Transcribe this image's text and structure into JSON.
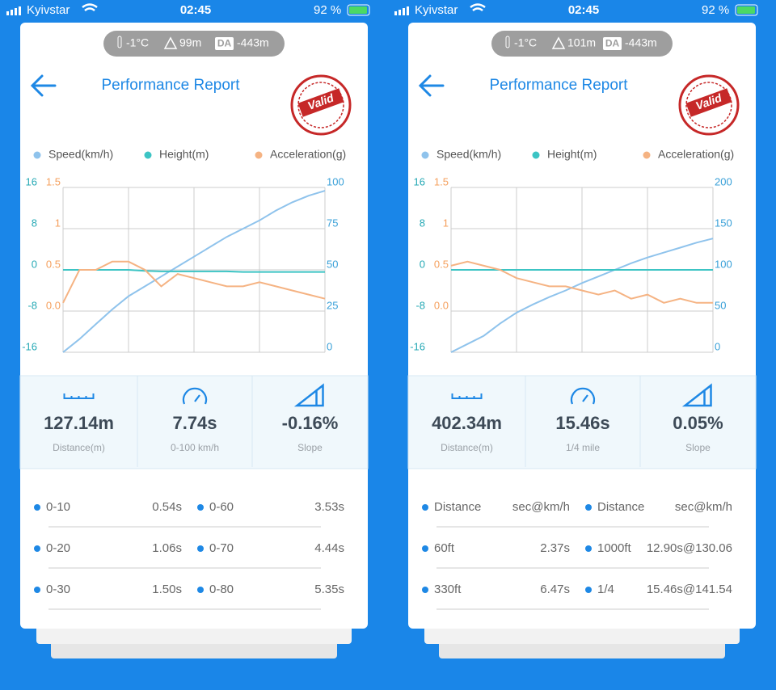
{
  "screens": [
    {
      "status": {
        "carrier": "Kyivstar",
        "time": "02:45",
        "battery": "92 %"
      },
      "conditions": {
        "temperature": "-1°C",
        "altitude": "99m",
        "da_badge": "DA",
        "density_altitude": "-443m"
      },
      "header": {
        "title": "Performance Report",
        "stamp": "Valid"
      },
      "chart": {
        "type": "line",
        "ylim": [
          -16,
          16
        ],
        "yticks": [
          16,
          8,
          0,
          -8,
          -16
        ],
        "acc_lim": [
          -0.5,
          1.5
        ],
        "acc_ticks": [
          1.5,
          1,
          0.5,
          {
            "value": 0,
            "label": "0.0"
          }
        ],
        "y2lim": [
          0,
          100
        ],
        "y2ticks": [
          100,
          75,
          50,
          25,
          0
        ],
        "grid": true,
        "series": [
          {
            "name": "Speed(km/h)",
            "color": "#8fc3ec",
            "axis": "y2",
            "values": [
              0,
              8,
              17,
              26,
              34,
              40,
              46,
              52,
              58,
              64,
              70,
              75,
              80,
              86,
              91,
              95,
              98
            ]
          },
          {
            "name": "Height(m)",
            "color": "#3cc4c4",
            "axis": "y",
            "values": [
              0,
              0,
              0,
              0,
              0,
              -0.2,
              -0.3,
              -0.3,
              -0.3,
              -0.3,
              -0.3,
              -0.4,
              -0.4,
              -0.4,
              -0.4,
              -0.4,
              -0.4
            ]
          },
          {
            "name": "Acceleration(g)",
            "color": "#f5b383",
            "axis": "acc",
            "values": [
              0.1,
              0.5,
              0.5,
              0.6,
              0.6,
              0.5,
              0.3,
              0.45,
              0.4,
              0.35,
              0.3,
              0.3,
              0.35,
              0.3,
              0.25,
              0.2,
              0.15
            ]
          }
        ]
      },
      "stats": [
        {
          "value": "127.14m",
          "label": "Distance(m)"
        },
        {
          "value": "7.74s",
          "label": "0-100 km/h"
        },
        {
          "value": "-0.16%",
          "label": "Slope"
        }
      ],
      "splits": [
        [
          "0-10",
          "0.54s",
          "0-60",
          "3.53s"
        ],
        [
          "0-20",
          "1.06s",
          "0-70",
          "4.44s"
        ],
        [
          "0-30",
          "1.50s",
          "0-80",
          "5.35s"
        ]
      ]
    },
    {
      "status": {
        "carrier": "Kyivstar",
        "time": "02:45",
        "battery": "92 %"
      },
      "conditions": {
        "temperature": "-1°C",
        "altitude": "101m",
        "da_badge": "DA",
        "density_altitude": "-443m"
      },
      "header": {
        "title": "Performance Report",
        "stamp": "Valid"
      },
      "chart": {
        "type": "line",
        "ylim": [
          -16,
          16
        ],
        "yticks": [
          16,
          8,
          0,
          -8,
          -16
        ],
        "acc_lim": [
          -0.5,
          1.5
        ],
        "acc_ticks": [
          1.5,
          1,
          0.5,
          {
            "value": 0,
            "label": "0.0"
          }
        ],
        "y2lim": [
          0,
          200
        ],
        "y2ticks": [
          200,
          150,
          100,
          50,
          0
        ],
        "grid": true,
        "series": [
          {
            "name": "Speed(km/h)",
            "color": "#8fc3ec",
            "axis": "y2",
            "values": [
              0,
              10,
              20,
              35,
              48,
              58,
              67,
              75,
              84,
              92,
              100,
              108,
              115,
              121,
              127,
              133,
              138
            ]
          },
          {
            "name": "Height(m)",
            "color": "#3cc4c4",
            "axis": "y",
            "values": [
              0,
              0,
              0,
              0,
              0,
              0,
              0,
              0,
              0,
              0,
              0,
              0,
              0,
              0,
              0,
              0,
              0
            ]
          },
          {
            "name": "Acceleration(g)",
            "color": "#f5b383",
            "axis": "acc",
            "values": [
              0.55,
              0.6,
              0.55,
              0.5,
              0.4,
              0.35,
              0.3,
              0.3,
              0.25,
              0.2,
              0.25,
              0.15,
              0.2,
              0.1,
              0.15,
              0.1,
              0.1
            ]
          }
        ]
      },
      "stats": [
        {
          "value": "402.34m",
          "label": "Distance(m)"
        },
        {
          "value": "15.46s",
          "label": "1/4 mile"
        },
        {
          "value": "0.05%",
          "label": "Slope"
        }
      ],
      "splits": [
        [
          "Distance",
          "sec@km/h",
          "Distance",
          "sec@km/h"
        ],
        [
          "60ft",
          "2.37s",
          "1000ft",
          "12.90s@130.06"
        ],
        [
          "330ft",
          "6.47s",
          "1/4",
          "15.46s@141.54"
        ]
      ]
    }
  ]
}
